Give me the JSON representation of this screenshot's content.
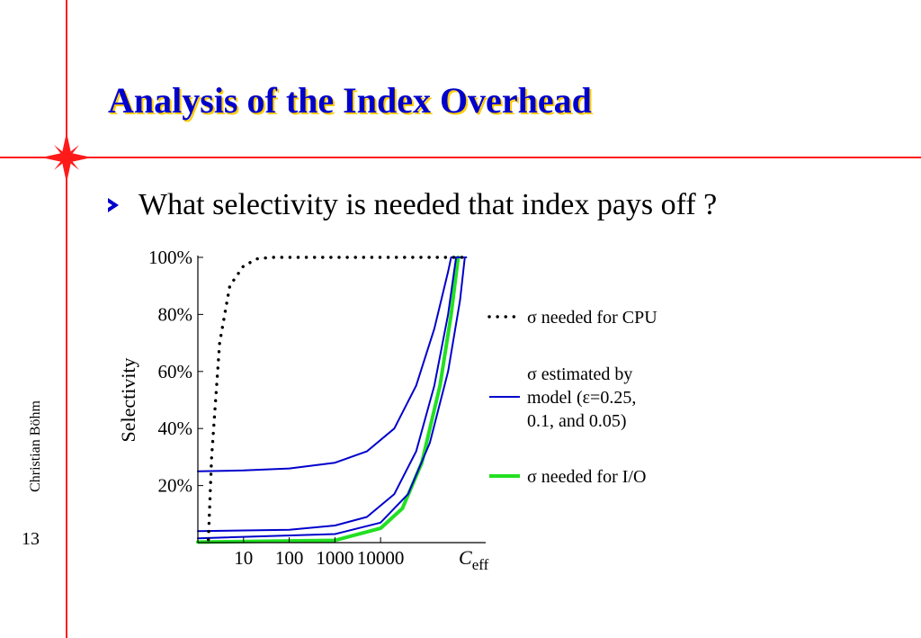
{
  "slide": {
    "title": "Analysis of the Index Overhead",
    "bullet": "What selectivity is needed that index pays off ?",
    "author": "Christian Böhm",
    "page_number": "13"
  },
  "colors": {
    "frame": "#ff1a1a",
    "title": "#0000cc",
    "title_shadow": "#ffcc00",
    "model_curve": "#0000cc",
    "io_curve": "#22e022",
    "cpu_curve": "#000000"
  },
  "chart_data": {
    "type": "line",
    "ylabel": "Selectivity",
    "x_tick_labels": [
      "10",
      "100",
      "1000",
      "10000"
    ],
    "x_axis_end_label": {
      "main": "C",
      "sub": "eff"
    },
    "x_scale": "log",
    "xlim": [
      1,
      2000000
    ],
    "y_tick_labels": [
      "100%",
      "80%",
      "60%",
      "40%",
      "20%"
    ],
    "y_ticks": [
      100,
      80,
      60,
      40,
      20
    ],
    "ylim": [
      0,
      100
    ],
    "grid": false,
    "legend_position": "right",
    "legend": [
      {
        "series": "cpu",
        "label": "σ needed for CPU",
        "style": "dotted"
      },
      {
        "series": "model",
        "label": "σ estimated by model (ε=0.25, 0.1, and 0.05)",
        "style": "solid"
      },
      {
        "series": "io",
        "label": "σ needed for I/O",
        "style": "thick"
      }
    ],
    "series": [
      {
        "id": "cpu",
        "color": "#000000",
        "style": "dotted",
        "points": [
          [
            1.7,
            1
          ],
          [
            2,
            30
          ],
          [
            3,
            70
          ],
          [
            5,
            90
          ],
          [
            10,
            97
          ],
          [
            20,
            99.5
          ],
          [
            40,
            100
          ],
          [
            700000,
            100
          ]
        ]
      },
      {
        "id": "model_eps_0_25",
        "color": "#0000cc",
        "style": "solid",
        "points": [
          [
            1,
            25
          ],
          [
            10,
            25.3
          ],
          [
            100,
            26
          ],
          [
            1000,
            28
          ],
          [
            5000,
            32
          ],
          [
            20000,
            40
          ],
          [
            60000,
            55
          ],
          [
            150000,
            75
          ],
          [
            300000,
            95
          ],
          [
            350000,
            100
          ],
          [
            600000,
            100
          ]
        ]
      },
      {
        "id": "model_eps_0_1",
        "color": "#0000cc",
        "style": "solid",
        "points": [
          [
            1,
            4
          ],
          [
            100,
            4.5
          ],
          [
            1000,
            6
          ],
          [
            5000,
            9
          ],
          [
            20000,
            17
          ],
          [
            60000,
            32
          ],
          [
            150000,
            55
          ],
          [
            300000,
            80
          ],
          [
            450000,
            100
          ],
          [
            650000,
            100
          ]
        ]
      },
      {
        "id": "model_eps_0_05",
        "color": "#0000cc",
        "style": "solid",
        "points": [
          [
            1,
            1.5
          ],
          [
            1000,
            3
          ],
          [
            10000,
            7
          ],
          [
            40000,
            17
          ],
          [
            120000,
            35
          ],
          [
            300000,
            60
          ],
          [
            550000,
            85
          ],
          [
            700000,
            100
          ],
          [
            750000,
            100
          ]
        ]
      },
      {
        "id": "io",
        "color": "#22e022",
        "style": "thick",
        "points": [
          [
            1,
            0.2
          ],
          [
            1000,
            0.8
          ],
          [
            10000,
            5
          ],
          [
            30000,
            12
          ],
          [
            80000,
            28
          ],
          [
            200000,
            55
          ],
          [
            350000,
            80
          ],
          [
            500000,
            100
          ]
        ]
      }
    ]
  }
}
